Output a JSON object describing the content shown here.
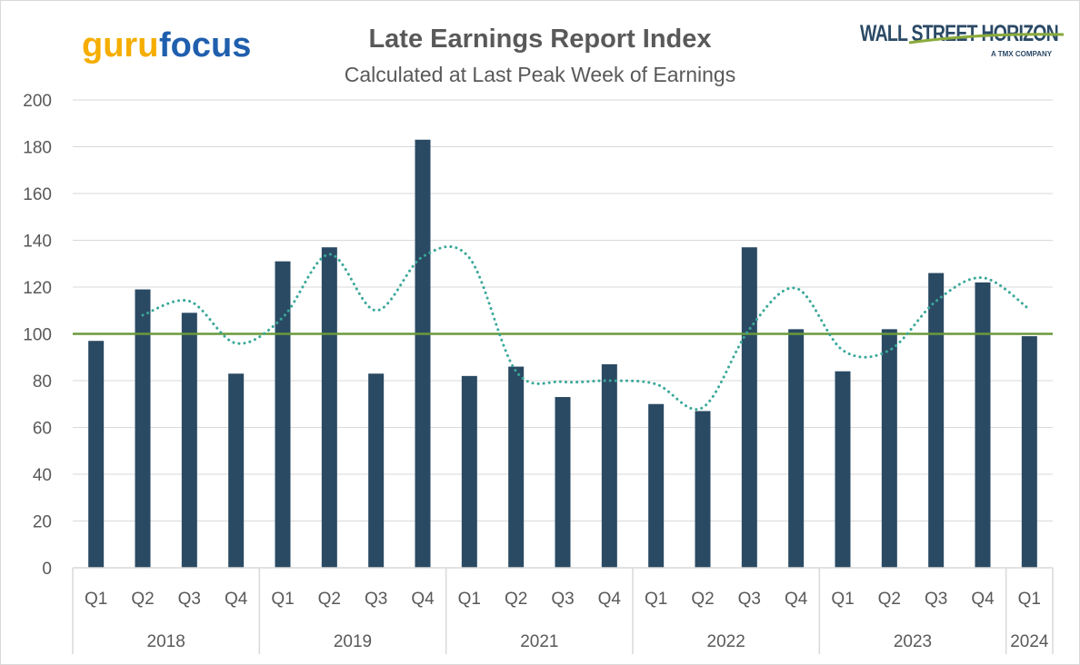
{
  "chart_data": {
    "type": "bar",
    "title": "Late Earnings Report Index",
    "subtitle": "Calculated at Last Peak Week of Earnings",
    "xlabel": "",
    "ylabel": "",
    "ylim": [
      0,
      200
    ],
    "yticks": [
      0,
      20,
      40,
      60,
      80,
      100,
      120,
      140,
      160,
      180,
      200
    ],
    "grid": true,
    "categories": [
      "Q1",
      "Q2",
      "Q3",
      "Q4",
      "Q1",
      "Q2",
      "Q3",
      "Q4",
      "Q1",
      "Q2",
      "Q3",
      "Q4",
      "Q1",
      "Q2",
      "Q3",
      "Q4",
      "Q1",
      "Q2",
      "Q3",
      "Q4",
      "Q1"
    ],
    "groups": [
      {
        "label": "2018",
        "count": 4
      },
      {
        "label": "2019",
        "count": 4
      },
      {
        "label": "2021",
        "count": 4
      },
      {
        "label": "2022",
        "count": 4
      },
      {
        "label": "2023",
        "count": 4
      },
      {
        "label": "2024",
        "count": 1
      }
    ],
    "series": [
      {
        "type": "bar",
        "color": "#2a4a63",
        "values": [
          97,
          119,
          109,
          83,
          131,
          137,
          83,
          183,
          82,
          86,
          73,
          87,
          70,
          67,
          137,
          102,
          84,
          102,
          126,
          122,
          99
        ]
      },
      {
        "type": "line",
        "style": "dotted",
        "trendline": "2-period moving average",
        "color": "#3aa89a",
        "values": [
          null,
          108,
          114,
          96,
          107,
          134,
          110,
          133,
          132.5,
          84,
          79.5,
          80,
          78.5,
          68.5,
          102,
          119.5,
          93,
          93,
          114,
          124,
          110.5
        ]
      },
      {
        "type": "line",
        "style": "solid",
        "color": "#6a9a3a",
        "values": [
          100,
          100,
          100,
          100,
          100,
          100,
          100,
          100,
          100,
          100,
          100,
          100,
          100,
          100,
          100,
          100,
          100,
          100,
          100,
          100,
          100
        ]
      }
    ]
  },
  "logos": {
    "wall_street_horizon": "WALL STREET HORIZON",
    "tmx": "A TMX COMPANY",
    "gurufocus_guru": "guru",
    "gurufocus_focus": "focus"
  }
}
